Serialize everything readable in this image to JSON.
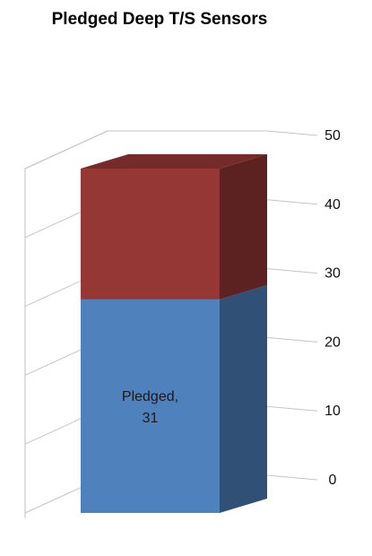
{
  "chart_data": {
    "type": "bar",
    "subtype": "3d-stacked-column",
    "title": "Pledged Deep T/S Sensors",
    "xlabel": "",
    "ylabel": "",
    "ylim": [
      0,
      50
    ],
    "y_ticks": [
      0,
      10,
      20,
      30,
      40,
      50
    ],
    "y_axis_side": "right",
    "grid": true,
    "legend": "none",
    "categories": [
      ""
    ],
    "series": [
      {
        "name": "Pledged",
        "values": [
          31
        ],
        "color": "#4F81BD",
        "data_label": [
          "Pledged,",
          "31"
        ]
      },
      {
        "name": "",
        "values": [
          19
        ],
        "color": "#953735",
        "data_label": []
      }
    ]
  }
}
